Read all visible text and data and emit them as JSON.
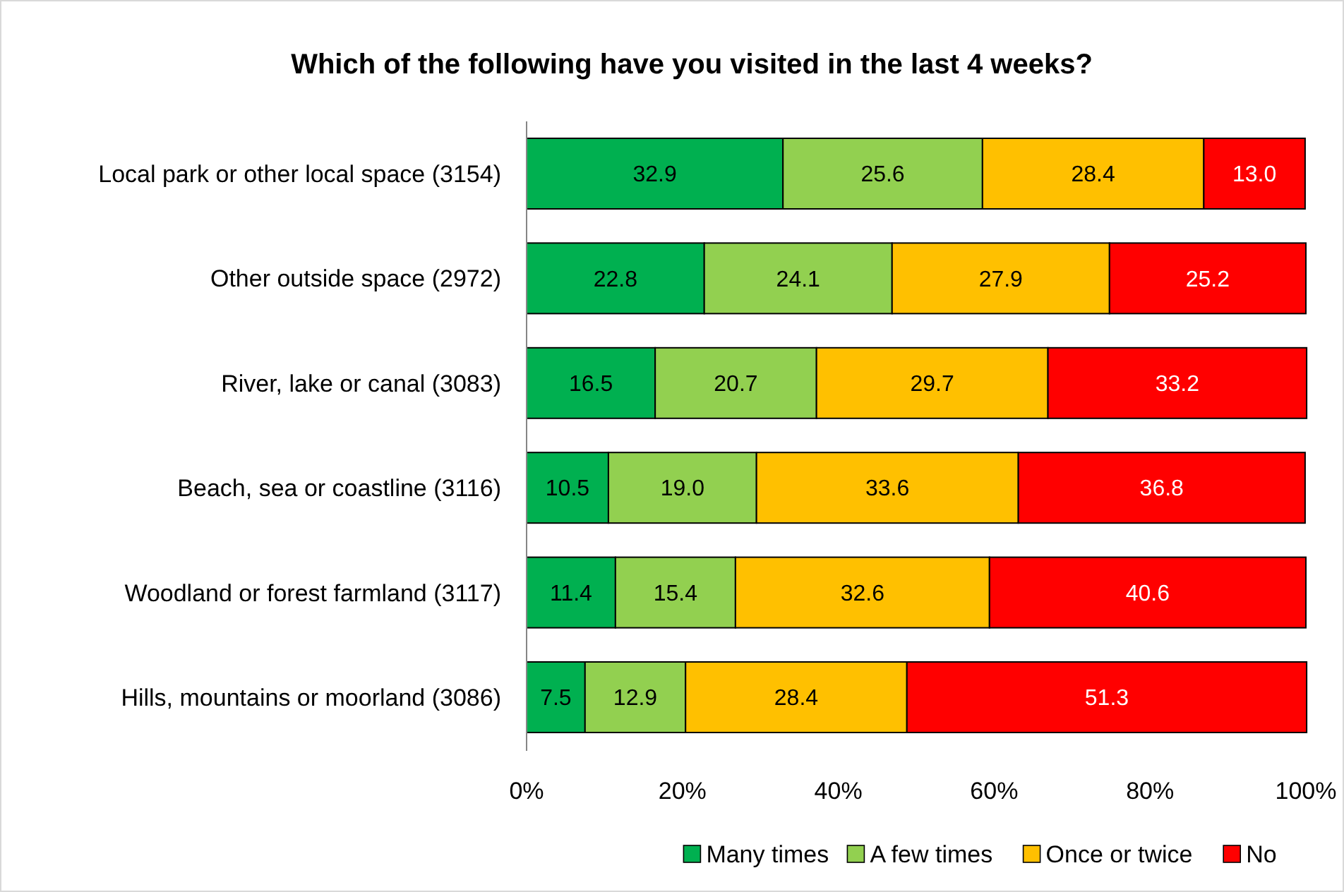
{
  "chart_data": {
    "type": "bar",
    "orientation": "horizontal",
    "stacked": true,
    "title": "Which of the following have you visited in the last 4 weeks?",
    "categories": [
      "Local park or other local space (3154)",
      "Other outside space (2972)",
      "River, lake or canal (3083)",
      "Beach, sea or coastline (3116)",
      "Woodland or forest farmland (3117)",
      "Hills, mountains or moorland (3086)"
    ],
    "series": [
      {
        "name": "Many times",
        "color": "#00b050",
        "values": [
          32.9,
          22.8,
          16.5,
          10.5,
          11.4,
          7.5
        ],
        "value_labels": [
          "32.9",
          "22.8",
          "16.5",
          "10.5",
          "11.4",
          "7.5"
        ]
      },
      {
        "name": "A few times",
        "color": "#92d050",
        "values": [
          25.6,
          24.1,
          20.7,
          19.0,
          15.4,
          12.9
        ],
        "value_labels": [
          "25.6",
          "24.1",
          "20.7",
          "19.0",
          "15.4",
          "12.9"
        ]
      },
      {
        "name": "Once or twice",
        "color": "#ffc000",
        "values": [
          28.4,
          27.9,
          29.7,
          33.6,
          32.6,
          28.4
        ],
        "value_labels": [
          "28.4",
          "27.9",
          "29.7",
          "33.6",
          "32.6",
          "28.4"
        ]
      },
      {
        "name": "No",
        "color": "#ff0000",
        "values": [
          13.0,
          25.2,
          33.2,
          36.8,
          40.6,
          51.3
        ],
        "value_labels": [
          "13.0",
          "25.2",
          "33.2",
          "36.8",
          "40.6",
          "51.3"
        ]
      }
    ],
    "xlim": [
      0,
      100
    ],
    "xticks": [
      {
        "value": 0,
        "label": "0%"
      },
      {
        "value": 20,
        "label": "20%"
      },
      {
        "value": 40,
        "label": "40%"
      },
      {
        "value": 60,
        "label": "60%"
      },
      {
        "value": 80,
        "label": "80%"
      },
      {
        "value": 100,
        "label": "100%"
      }
    ],
    "grid": false,
    "legend": "bottom"
  }
}
